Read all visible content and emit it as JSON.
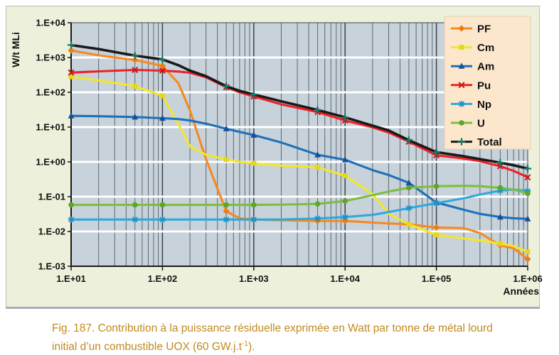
{
  "figure": {
    "caption_prefix": "Fig. 187. Contribution à la puissance résiduelle exprimée en Watt par tonne de métal lourd initial d’un combustible UOX (60 GW.j.t",
    "caption_sup": "-1",
    "caption_suffix": ")."
  },
  "chart_data": {
    "type": "line",
    "x_scale": "log",
    "y_scale": "log",
    "title": "",
    "xlabel": "Années",
    "ylabel": "W/t MLi",
    "xlim": [
      10,
      1000000
    ],
    "ylim": [
      0.001,
      10000
    ],
    "x_ticks": [
      "1.E+01",
      "1.E+02",
      "1.E+03",
      "1.E+04",
      "1.E+05",
      "1.E+06"
    ],
    "y_ticks": [
      "1.E+04",
      "1.E+03",
      "1.E+02",
      "1.E+01",
      "1.E+00",
      "1.E-01",
      "1.E-02",
      "1.E-03"
    ],
    "grid": {
      "vertical_minor_log": true,
      "horizontal_white_decades": true
    },
    "legend_position": "top-right",
    "x": [
      10,
      20,
      50,
      100,
      150,
      200,
      300,
      500,
      700,
      1000,
      2000,
      5000,
      10000,
      20000,
      30000,
      50000,
      100000,
      200000,
      300000,
      500000,
      700000,
      1000000
    ],
    "marker_x": [
      10,
      50,
      100,
      500,
      1000,
      5000,
      10000,
      50000,
      100000,
      500000,
      1000000
    ],
    "series": [
      {
        "name": "PF",
        "color": "#F6891F",
        "marker": "diamond",
        "marker_color": "#ef7c10",
        "values": [
          1600,
          1150,
          850,
          575,
          180,
          30,
          1.2,
          0.038,
          0.024,
          0.022,
          0.021,
          0.02,
          0.02,
          0.018,
          0.017,
          0.016,
          0.013,
          0.0125,
          0.009,
          0.004,
          0.0033,
          0.0016
        ]
      },
      {
        "name": "Cm",
        "color": "#F2E72A",
        "marker": "square",
        "marker_color": "#e5d71c",
        "values": [
          280,
          220,
          150,
          80,
          12,
          2.8,
          1.6,
          1.18,
          1.0,
          0.9,
          0.78,
          0.7,
          0.4,
          0.12,
          0.032,
          0.016,
          0.008,
          0.0063,
          0.0055,
          0.0045,
          0.0038,
          0.0026
        ]
      },
      {
        "name": "Am",
        "color": "#1F70B8",
        "marker": "triangle",
        "marker_color": "#174f9b",
        "values": [
          21,
          20.5,
          19.5,
          18,
          17,
          15.5,
          12.5,
          9.0,
          7.3,
          5.9,
          3.6,
          1.6,
          1.15,
          0.58,
          0.42,
          0.25,
          0.068,
          0.042,
          0.032,
          0.026,
          0.024,
          0.023
        ]
      },
      {
        "name": "Pu",
        "color": "#EC2227",
        "marker": "x",
        "marker_color": "#c9151b",
        "values": [
          370,
          400,
          440,
          420,
          395,
          365,
          270,
          140,
          100,
          76,
          45,
          27,
          15.5,
          9.8,
          7.0,
          3.8,
          1.55,
          1.25,
          1.05,
          0.75,
          0.55,
          0.36
        ]
      },
      {
        "name": "Np",
        "color": "#2FA8DC",
        "marker": "asterisk",
        "marker_color": "#1b93c9",
        "values": [
          0.022,
          0.022,
          0.022,
          0.022,
          0.022,
          0.022,
          0.022,
          0.022,
          0.022,
          0.022,
          0.022,
          0.0235,
          0.026,
          0.03,
          0.036,
          0.047,
          0.065,
          0.09,
          0.115,
          0.15,
          0.16,
          0.145
        ]
      },
      {
        "name": "U",
        "color": "#7DBE41",
        "marker": "circle",
        "marker_color": "#5fa52c",
        "values": [
          0.058,
          0.058,
          0.058,
          0.058,
          0.058,
          0.058,
          0.058,
          0.058,
          0.058,
          0.058,
          0.059,
          0.062,
          0.075,
          0.11,
          0.14,
          0.18,
          0.2,
          0.205,
          0.2,
          0.18,
          0.16,
          0.125
        ]
      },
      {
        "name": "Total",
        "color": "#1A1A1A",
        "marker": "plus",
        "marker_color": "#187A6B",
        "values": [
          2280,
          1750,
          1130,
          880,
          600,
          420,
          290,
          150,
          110,
          87,
          55,
          31,
          19,
          11,
          8.0,
          4.2,
          1.9,
          1.45,
          1.2,
          0.95,
          0.8,
          0.64
        ]
      }
    ]
  },
  "style": {
    "panel_bg": "#EDF1DC",
    "panel_border": "#b9bfb1",
    "panel_bottom_bar": "#a6adb5",
    "plot_bg": "#C7D2DB",
    "legend_bg": "#FCE7CD",
    "legend_border": "#e3d0b5",
    "grid_minor": "#5d6770",
    "grid_major": "#39424b",
    "grid_white": "#ffffff",
    "axis_color": "#1a1a1a",
    "text_color": "#111111",
    "caption_color": "#C28A1E"
  }
}
